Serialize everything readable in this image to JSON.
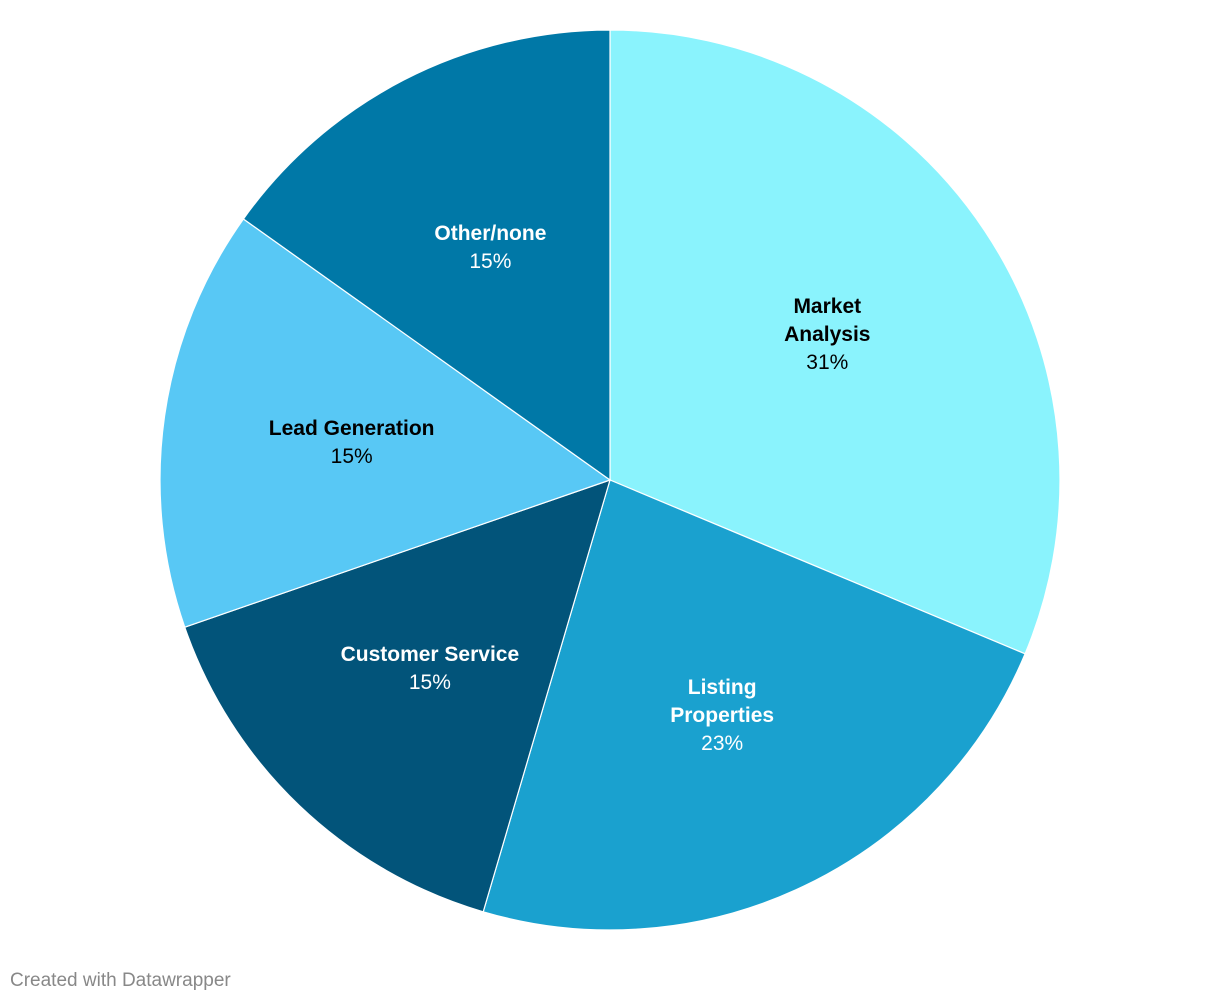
{
  "chart_data": {
    "type": "pie",
    "categories": [
      "Market Analysis",
      "Listing Properties",
      "Customer Service",
      "Lead Generation",
      "Other/none"
    ],
    "values": [
      31,
      23,
      15,
      15,
      15
    ],
    "value_labels": [
      "31%",
      "23%",
      "15%",
      "15%",
      "15%"
    ],
    "colors": [
      "#8af3fd",
      "#1aa1cf",
      "#02547a",
      "#58c8f5",
      "#0078a7"
    ],
    "credit": "Created with Datawrapper"
  }
}
